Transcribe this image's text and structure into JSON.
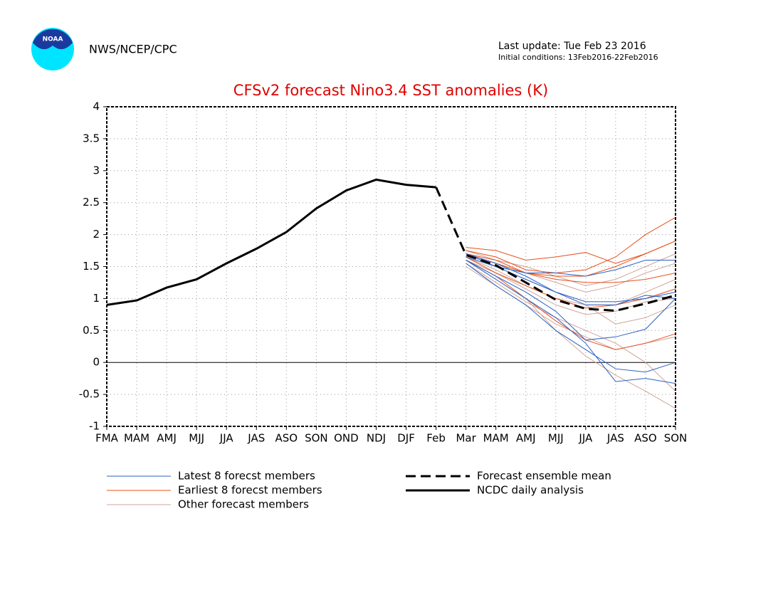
{
  "header": {
    "logo_text": "NOAA",
    "agency": "NWS/NCEP/CPC",
    "last_update": "Last update: Tue Feb 23 2016",
    "initial_conditions": "Initial conditions: 13Feb2016-22Feb2016"
  },
  "chart_data": {
    "type": "line",
    "title": "CFSv2 forecast Nino3.4 SST anomalies (K)",
    "categories": [
      "FMA",
      "MAM",
      "AMJ",
      "MJJ",
      "JJA",
      "JAS",
      "ASO",
      "SON",
      "OND",
      "NDJ",
      "DJF",
      "Feb",
      "Mar",
      "MAM",
      "AMJ",
      "MJJ",
      "JJA",
      "JAS",
      "ASO",
      "SON"
    ],
    "ylim": [
      -1,
      4
    ],
    "yticks": [
      -1,
      -0.5,
      0,
      0.5,
      1,
      1.5,
      2,
      2.5,
      3,
      3.5,
      4
    ],
    "grid": true,
    "series": [
      {
        "name": "Latest 8 forecst members",
        "color": "#2a62c4",
        "members": [
          [
            null,
            null,
            null,
            null,
            null,
            null,
            null,
            null,
            null,
            null,
            null,
            null,
            1.65,
            1.5,
            1.3,
            1.1,
            0.9,
            0.9,
            1.05,
            1.0
          ],
          [
            null,
            null,
            null,
            null,
            null,
            null,
            null,
            null,
            null,
            null,
            null,
            null,
            1.6,
            1.35,
            1.1,
            0.8,
            0.35,
            0.4,
            0.52,
            1.0
          ],
          [
            null,
            null,
            null,
            null,
            null,
            null,
            null,
            null,
            null,
            null,
            null,
            null,
            1.7,
            1.5,
            1.4,
            1.4,
            1.35,
            1.45,
            1.6,
            1.6
          ],
          [
            null,
            null,
            null,
            null,
            null,
            null,
            null,
            null,
            null,
            null,
            null,
            null,
            1.6,
            1.3,
            1.0,
            0.7,
            0.3,
            -0.3,
            -0.25,
            -0.33
          ],
          [
            null,
            null,
            null,
            null,
            null,
            null,
            null,
            null,
            null,
            null,
            null,
            null,
            1.55,
            1.2,
            0.9,
            0.5,
            0.2,
            -0.1,
            -0.15,
            0.0
          ],
          [
            null,
            null,
            null,
            null,
            null,
            null,
            null,
            null,
            null,
            null,
            null,
            null,
            1.7,
            1.55,
            1.35,
            1.1,
            0.95,
            0.95,
            1.0,
            1.1
          ]
        ]
      },
      {
        "name": "Earliest 8 forecst members",
        "color": "#e8501e",
        "members": [
          [
            null,
            null,
            null,
            null,
            null,
            null,
            null,
            null,
            null,
            null,
            null,
            null,
            1.8,
            1.75,
            1.6,
            1.65,
            1.72,
            1.55,
            1.7,
            1.9
          ],
          [
            null,
            null,
            null,
            null,
            null,
            null,
            null,
            null,
            null,
            null,
            null,
            null,
            1.75,
            1.65,
            1.45,
            1.4,
            1.45,
            1.65,
            2.0,
            2.27
          ],
          [
            null,
            null,
            null,
            null,
            null,
            null,
            null,
            null,
            null,
            null,
            null,
            null,
            1.7,
            1.55,
            1.4,
            1.3,
            1.25,
            1.25,
            1.3,
            1.4
          ],
          [
            null,
            null,
            null,
            null,
            null,
            null,
            null,
            null,
            null,
            null,
            null,
            null,
            1.6,
            1.35,
            1.0,
            0.65,
            0.35,
            0.2,
            0.3,
            0.45
          ],
          [
            null,
            null,
            null,
            null,
            null,
            null,
            null,
            null,
            null,
            null,
            null,
            null,
            1.7,
            1.6,
            1.4,
            1.35,
            1.35,
            1.5,
            1.7,
            1.9
          ],
          [
            null,
            null,
            null,
            null,
            null,
            null,
            null,
            null,
            null,
            null,
            null,
            null,
            1.65,
            1.4,
            1.2,
            1.0,
            0.85,
            0.9,
            1.0,
            1.15
          ]
        ]
      },
      {
        "name": "Other forecast members",
        "color": "#cfa699",
        "members": [
          [
            null,
            null,
            null,
            null,
            null,
            null,
            null,
            null,
            null,
            null,
            null,
            null,
            1.6,
            1.3,
            1.0,
            0.5,
            0.1,
            -0.2,
            -0.45,
            -0.72
          ],
          [
            null,
            null,
            null,
            null,
            null,
            null,
            null,
            null,
            null,
            null,
            null,
            null,
            1.5,
            1.2,
            0.9,
            0.6,
            0.4,
            0.2,
            0.3,
            0.4
          ],
          [
            null,
            null,
            null,
            null,
            null,
            null,
            null,
            null,
            null,
            null,
            null,
            null,
            1.7,
            1.5,
            1.3,
            1.1,
            0.9,
            0.6,
            0.7,
            0.9
          ],
          [
            null,
            null,
            null,
            null,
            null,
            null,
            null,
            null,
            null,
            null,
            null,
            null,
            1.65,
            1.45,
            1.2,
            1.0,
            0.9,
            0.9,
            1.1,
            1.3
          ],
          [
            null,
            null,
            null,
            null,
            null,
            null,
            null,
            null,
            null,
            null,
            null,
            null,
            1.75,
            1.6,
            1.5,
            1.35,
            1.2,
            1.3,
            1.5,
            1.7
          ],
          [
            null,
            null,
            null,
            null,
            null,
            null,
            null,
            null,
            null,
            null,
            null,
            null,
            1.55,
            1.25,
            0.95,
            0.7,
            0.5,
            0.3,
            0.0,
            -0.45
          ],
          [
            null,
            null,
            null,
            null,
            null,
            null,
            null,
            null,
            null,
            null,
            null,
            null,
            1.6,
            1.4,
            1.15,
            0.9,
            0.75,
            0.8,
            0.95,
            1.0
          ],
          [
            null,
            null,
            null,
            null,
            null,
            null,
            null,
            null,
            null,
            null,
            null,
            null,
            1.7,
            1.55,
            1.4,
            1.25,
            1.1,
            1.2,
            1.4,
            1.55
          ]
        ]
      },
      {
        "name": "Forecast ensemble mean",
        "color": "#000000",
        "dashed": true,
        "values": [
          null,
          null,
          null,
          null,
          null,
          null,
          null,
          null,
          null,
          null,
          null,
          2.74,
          1.68,
          1.52,
          1.25,
          0.98,
          0.84,
          0.81,
          0.92,
          1.05
        ]
      },
      {
        "name": "NCDC daily analysis",
        "color": "#000000",
        "values": [
          0.9,
          0.97,
          1.17,
          1.3,
          1.55,
          1.78,
          2.04,
          2.41,
          2.69,
          2.86,
          2.78,
          2.74,
          null,
          null,
          null,
          null,
          null,
          null,
          null,
          null
        ]
      }
    ]
  }
}
